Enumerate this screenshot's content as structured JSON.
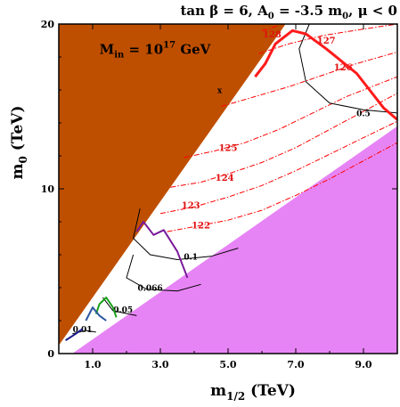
{
  "chart_data": {
    "type": "contour",
    "title": "tan β = 6, A₀ = -3.5 m₀, μ < 0",
    "title_parts": {
      "a": "tan β = 6, A",
      "sub1": "0",
      "b": " = -3.5 m",
      "sub2": "0",
      "c": ", μ < 0"
    },
    "xlabel": {
      "main": "m",
      "sub": "1/2",
      "unit": " (TeV)"
    },
    "ylabel": {
      "main": "m",
      "sub": "0",
      "unit": " (TeV)"
    },
    "xlim": [
      0,
      10
    ],
    "ylim": [
      0,
      20
    ],
    "xticks": [
      {
        "value": 1,
        "label": "1.0"
      },
      {
        "value": 3,
        "label": "3.0"
      },
      {
        "value": 5,
        "label": "5.0"
      },
      {
        "value": 7,
        "label": "7.0"
      },
      {
        "value": 9,
        "label": "9.0"
      }
    ],
    "yticks": [
      {
        "value": 0,
        "label": "0"
      },
      {
        "value": 10,
        "label": "10"
      },
      {
        "value": 20,
        "label": "20"
      }
    ],
    "annotation": {
      "text_main": "M",
      "sub": "in",
      "mid": " = 10",
      "sup": "17",
      "end": " GeV",
      "x": 1.2,
      "y": 18.2
    },
    "marker": {
      "text": "x",
      "x": 4.75,
      "y": 15.8
    },
    "regions": {
      "excluded_brown": {
        "color": "#bf4f00",
        "boundary": [
          [
            0,
            0.5
          ],
          [
            0,
            20
          ],
          [
            6.7,
            20
          ]
        ]
      },
      "excluded_pink": {
        "color": "#e784f5",
        "boundary": [
          [
            0.4,
            0
          ],
          [
            10,
            13.8
          ],
          [
            10,
            0
          ]
        ]
      }
    },
    "higgs_contours": {
      "color": "#ff0000",
      "style": "dash-dot",
      "series": [
        {
          "label": "122",
          "label_pos": [
            4.2,
            7.6
          ],
          "points": [
            [
              3.2,
              7.4
            ],
            [
              4.0,
              7.7
            ],
            [
              5.0,
              8.1
            ],
            [
              6.0,
              8.7
            ],
            [
              7.0,
              9.6
            ],
            [
              8.0,
              10.6
            ],
            [
              9.0,
              11.7
            ],
            [
              10,
              12.8
            ]
          ]
        },
        {
          "label": "123",
          "label_pos": [
            3.9,
            8.8
          ],
          "points": [
            [
              3.0,
              8.5
            ],
            [
              4.0,
              8.9
            ],
            [
              5.0,
              9.5
            ],
            [
              6.0,
              10.2
            ],
            [
              7.0,
              11.1
            ],
            [
              8.0,
              12.1
            ],
            [
              9.0,
              13.1
            ],
            [
              10,
              14.1
            ]
          ]
        },
        {
          "label": "124",
          "label_pos": [
            4.9,
            10.5
          ],
          "points": [
            [
              3.3,
              10.1
            ],
            [
              4.2,
              10.4
            ],
            [
              5.0,
              10.9
            ],
            [
              6.0,
              11.6
            ],
            [
              7.0,
              12.5
            ],
            [
              8.0,
              13.6
            ],
            [
              9.0,
              14.7
            ],
            [
              10,
              15.8
            ]
          ]
        },
        {
          "label": "125",
          "label_pos": [
            5.0,
            12.3
          ],
          "points": [
            [
              3.7,
              11.9
            ],
            [
              4.6,
              12.3
            ],
            [
              5.5,
              12.8
            ],
            [
              6.5,
              13.6
            ],
            [
              7.5,
              14.6
            ],
            [
              8.5,
              15.6
            ],
            [
              10,
              16.8
            ]
          ]
        },
        {
          "label": "126",
          "label_pos": [
            8.4,
            17.2
          ],
          "points": [
            [
              4.8,
              15.0
            ],
            [
              5.8,
              15.6
            ],
            [
              6.8,
              16.2
            ],
            [
              7.8,
              16.9
            ],
            [
              8.8,
              17.6
            ],
            [
              10,
              18.3
            ]
          ]
        },
        {
          "label": "127",
          "label_pos": [
            7.9,
            18.8
          ],
          "points": [
            [
              5.9,
              18.2
            ],
            [
              6.8,
              18.8
            ],
            [
              7.8,
              19.3
            ],
            [
              9.0,
              19.7
            ],
            [
              10,
              20
            ]
          ]
        },
        {
          "label": "128",
          "label_pos": [
            6.3,
            19.2
          ],
          "points": [
            [
              6.0,
              19.6
            ],
            [
              6.5,
              19.9
            ]
          ]
        }
      ]
    },
    "lifetime_contours": {
      "color": "#000000",
      "series": [
        {
          "label": "0.5",
          "label_pos": [
            9.0,
            14.4
          ],
          "points": [
            [
              7.4,
              20
            ],
            [
              7.1,
              18.5
            ],
            [
              7.3,
              16.5
            ],
            [
              8.0,
              15.2
            ],
            [
              9.0,
              14.8
            ],
            [
              10,
              14.6
            ]
          ]
        },
        {
          "label": "0.1",
          "label_pos": [
            3.9,
            5.7
          ],
          "points": [
            [
              2.4,
              8.8
            ],
            [
              2.2,
              7.0
            ],
            [
              2.7,
              6.0
            ],
            [
              3.5,
              5.7
            ],
            [
              4.5,
              5.9
            ],
            [
              5.3,
              6.4
            ]
          ]
        },
        {
          "label": "0.066",
          "label_pos": [
            2.7,
            3.8
          ],
          "points": [
            [
              2.2,
              6.0
            ],
            [
              2.0,
              4.6
            ],
            [
              2.6,
              3.9
            ],
            [
              3.5,
              3.8
            ],
            [
              4.2,
              4.2
            ]
          ]
        },
        {
          "label": "0.05",
          "label_pos": [
            1.9,
            2.5
          ],
          "points": [
            [
              1.3,
              3.4
            ],
            [
              1.6,
              2.6
            ],
            [
              2.3,
              2.3
            ]
          ]
        },
        {
          "label": "0.01",
          "label_pos": [
            0.7,
            1.3
          ],
          "points": [
            [
              0.4,
              1.2
            ],
            [
              0.8,
              1.4
            ],
            [
              1.1,
              1.3
            ]
          ]
        }
      ]
    },
    "thick_lines": [
      {
        "color": "#ff1a1a",
        "points": [
          [
            5.8,
            16.8
          ],
          [
            6.1,
            17.6
          ],
          [
            6.4,
            18.8
          ],
          [
            6.9,
            19.6
          ],
          [
            7.3,
            19.4
          ],
          [
            7.9,
            18.5
          ],
          [
            8.8,
            17.0
          ],
          [
            9.6,
            14.9
          ],
          [
            10,
            14.2
          ]
        ]
      },
      {
        "color": "#7a1a9a",
        "points": [
          [
            2.3,
            7.4
          ],
          [
            2.5,
            8.0
          ],
          [
            2.8,
            7.2
          ],
          [
            3.1,
            7.5
          ],
          [
            3.5,
            6.2
          ],
          [
            3.8,
            4.6
          ]
        ]
      },
      {
        "color": "#19a119",
        "points": [
          [
            1.1,
            2.4
          ],
          [
            1.2,
            3.0
          ],
          [
            1.4,
            3.4
          ],
          [
            1.6,
            2.8
          ],
          [
            1.7,
            2.2
          ]
        ]
      },
      {
        "color": "#2a56a0",
        "points": [
          [
            0.8,
            2.0
          ],
          [
            1.0,
            2.8
          ],
          [
            1.2,
            2.3
          ],
          [
            1.4,
            2.0
          ]
        ]
      },
      {
        "color": "#1a1a8a",
        "points": [
          [
            0.2,
            0.8
          ],
          [
            0.5,
            1.2
          ],
          [
            0.7,
            1.5
          ]
        ]
      }
    ],
    "grid": false
  }
}
